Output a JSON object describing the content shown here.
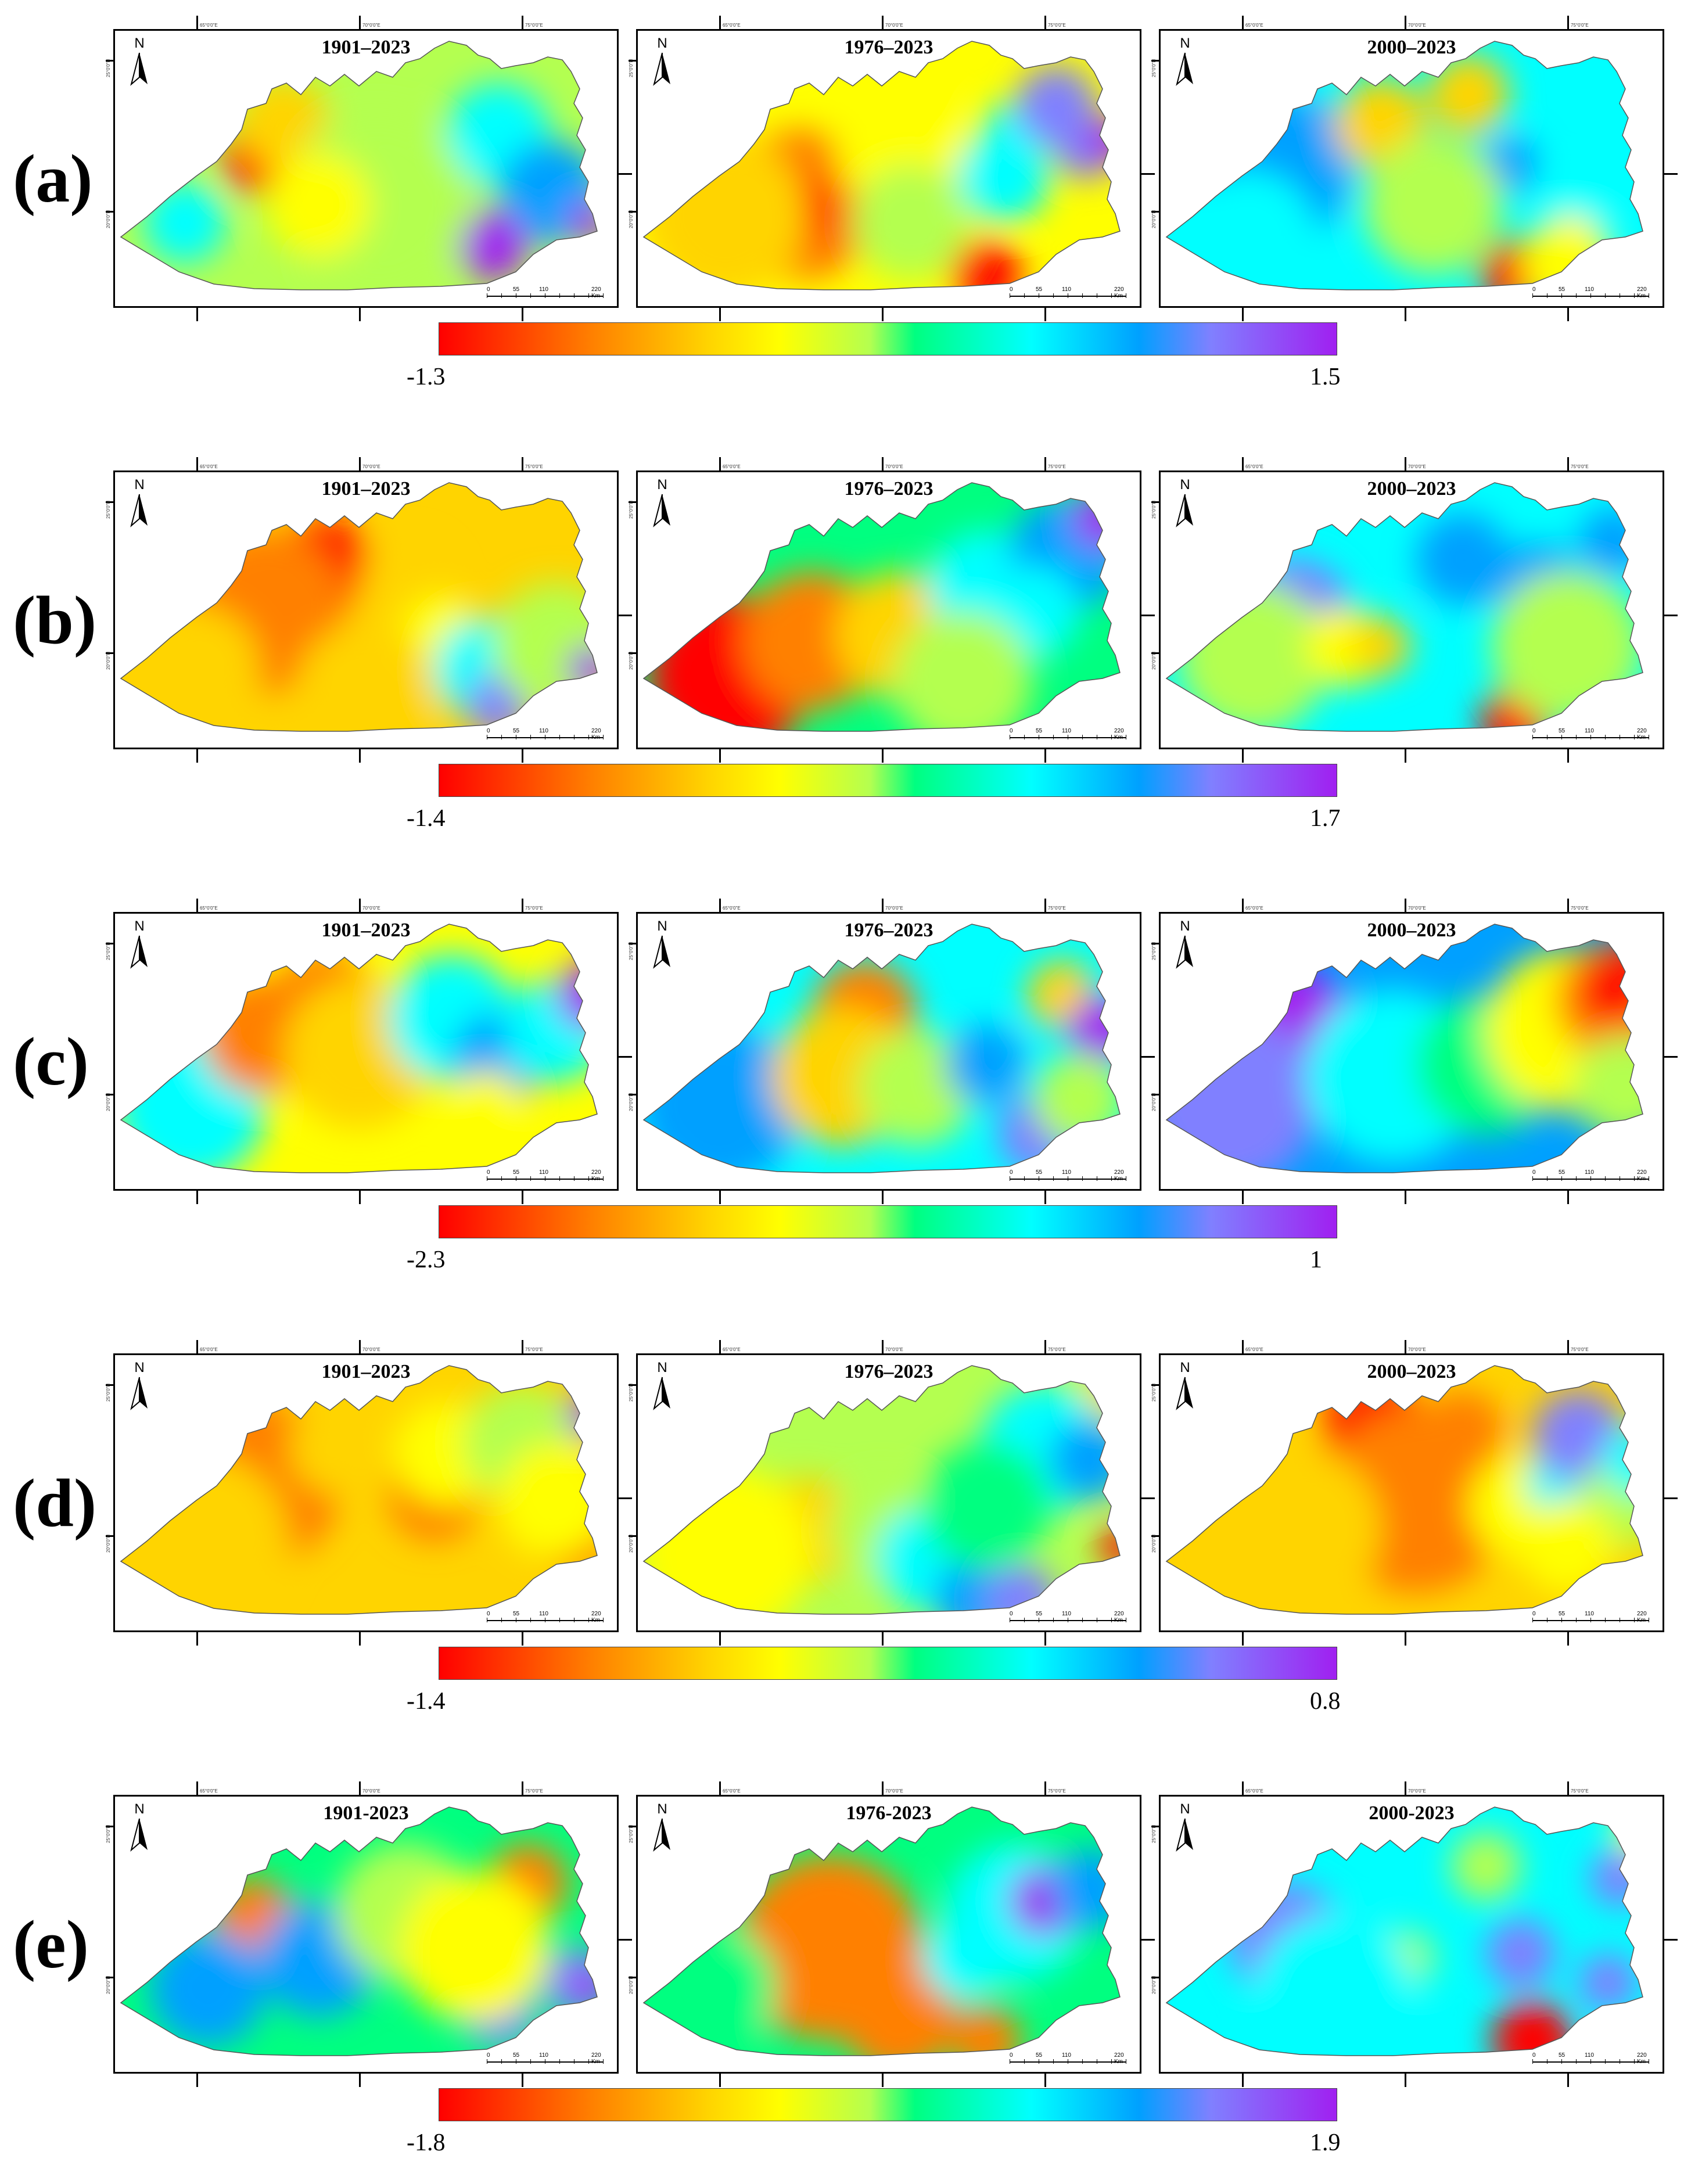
{
  "rows": [
    {
      "label": "(a)",
      "panels": [
        {
          "period": "1901–2023"
        },
        {
          "period": "1976–2023"
        },
        {
          "period": "2000–2023"
        }
      ],
      "colorbar": {
        "min": "-1.3",
        "max": "1.5"
      }
    },
    {
      "label": "(b)",
      "panels": [
        {
          "period": "1901–2023"
        },
        {
          "period": "1976–2023"
        },
        {
          "period": "2000–2023"
        }
      ],
      "colorbar": {
        "min": "-1.4",
        "max": "1.7"
      }
    },
    {
      "label": "(c)",
      "panels": [
        {
          "period": "1901–2023"
        },
        {
          "period": "1976–2023"
        },
        {
          "period": "2000–2023"
        }
      ],
      "colorbar": {
        "min": "-2.3",
        "max": "1"
      }
    },
    {
      "label": "(d)",
      "panels": [
        {
          "period": "1901–2023"
        },
        {
          "period": "1976–2023"
        },
        {
          "period": "2000–2023"
        }
      ],
      "colorbar": {
        "min": "-1.4",
        "max": "0.8"
      }
    },
    {
      "label": "(e)",
      "panels": [
        {
          "period": "1901-2023"
        },
        {
          "period": "1976-2023"
        },
        {
          "period": "2000-2023"
        }
      ],
      "colorbar": {
        "min": "-1.8",
        "max": "1.9"
      }
    }
  ],
  "north_arrow_letter": "N",
  "scale_bar": {
    "ticks": [
      "0",
      "55",
      "110",
      "220 Km"
    ]
  },
  "colormap": [
    "#ff0000",
    "#ff8000",
    "#ffd400",
    "#ffff00",
    "#b4ff50",
    "#00ff80",
    "#00ffff",
    "#00a0ff",
    "#8080ff",
    "#a020f0"
  ],
  "coordinate_labels": {
    "top": [
      "65°0'0\"E",
      "70°0'0\"E",
      "75°0'0\"E"
    ],
    "left": [
      "25°0'0\"N",
      "20°0'0\"N"
    ]
  }
}
